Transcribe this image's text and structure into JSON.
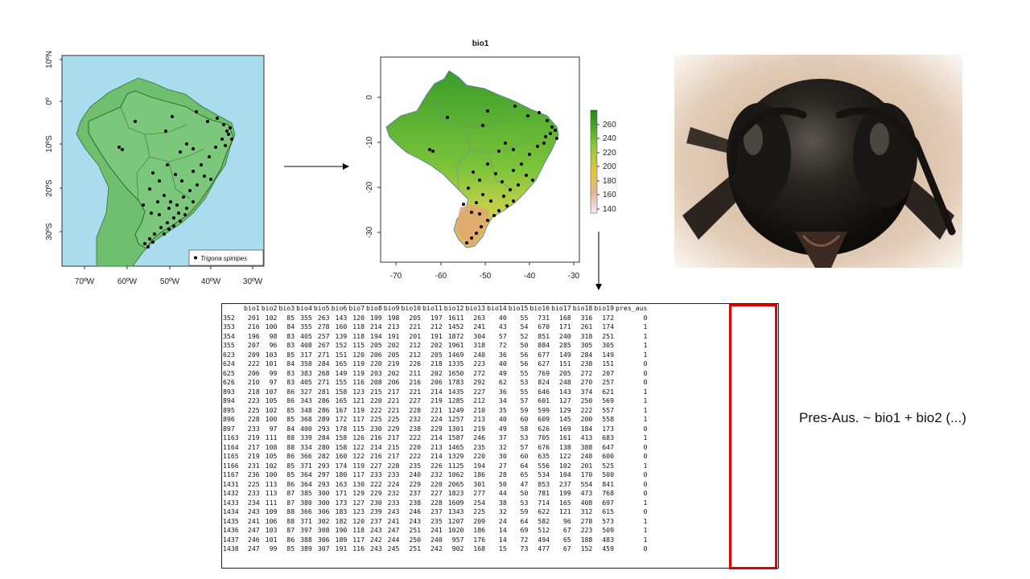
{
  "map1": {
    "y_ticks": [
      "10ºN",
      "0º",
      "10ºS",
      "20ºS",
      "30ºS"
    ],
    "x_ticks": [
      "70ºW",
      "60ºW",
      "50ºW",
      "40ºW",
      "30ºW"
    ],
    "legend_label": "Trigona spinipes"
  },
  "map2": {
    "title": "bio1",
    "y_ticks": [
      "0",
      "-10",
      "-20",
      "-30"
    ],
    "x_ticks": [
      "-70",
      "-60",
      "-50",
      "-40",
      "-30"
    ],
    "colorbar_ticks": [
      "260",
      "240",
      "220",
      "200",
      "180",
      "160",
      "140"
    ]
  },
  "colors": {
    "ocean": "#a9dcec",
    "land": "#7bc77b",
    "pres_box": "#e00000"
  },
  "table": {
    "headers": [
      "bio1",
      "bio2",
      "bio3",
      "bio4",
      "bio5",
      "bio6",
      "bio7",
      "bio8",
      "bio9",
      "bio10",
      "bio11",
      "bio12",
      "bio13",
      "bio14",
      "bio15",
      "bio16",
      "bio17",
      "bio18",
      "bio19",
      "pres_aus"
    ],
    "rows": [
      [
        "352",
        "201",
        "102",
        "85",
        "355",
        "263",
        "143",
        "120",
        "199",
        "198",
        "205",
        "197",
        "1611",
        "263",
        "40",
        "55",
        "731",
        "168",
        "316",
        "172",
        "0"
      ],
      [
        "353",
        "216",
        "100",
        "84",
        "355",
        "278",
        "160",
        "118",
        "214",
        "213",
        "221",
        "212",
        "1452",
        "241",
        "43",
        "54",
        "670",
        "171",
        "261",
        "174",
        "1"
      ],
      [
        "354",
        "196",
        "98",
        "83",
        "405",
        "257",
        "139",
        "118",
        "194",
        "191",
        "201",
        "191",
        "1872",
        "304",
        "57",
        "52",
        "851",
        "240",
        "318",
        "251",
        "1"
      ],
      [
        "355",
        "207",
        "96",
        "83",
        "408",
        "267",
        "152",
        "115",
        "205",
        "202",
        "212",
        "202",
        "1961",
        "318",
        "72",
        "50",
        "884",
        "285",
        "305",
        "305",
        "1"
      ],
      [
        "623",
        "209",
        "103",
        "85",
        "317",
        "271",
        "151",
        "120",
        "206",
        "205",
        "212",
        "205",
        "1469",
        "240",
        "36",
        "56",
        "677",
        "149",
        "284",
        "149",
        "1"
      ],
      [
        "624",
        "222",
        "101",
        "84",
        "358",
        "284",
        "165",
        "119",
        "220",
        "219",
        "226",
        "218",
        "1335",
        "223",
        "40",
        "56",
        "627",
        "151",
        "238",
        "151",
        "0"
      ],
      [
        "625",
        "206",
        "99",
        "83",
        "383",
        "268",
        "149",
        "119",
        "203",
        "202",
        "211",
        "202",
        "1650",
        "272",
        "49",
        "55",
        "769",
        "205",
        "272",
        "207",
        "0"
      ],
      [
        "626",
        "210",
        "97",
        "83",
        "405",
        "271",
        "155",
        "116",
        "208",
        "206",
        "216",
        "206",
        "1783",
        "292",
        "62",
        "53",
        "824",
        "248",
        "270",
        "257",
        "0"
      ],
      [
        "893",
        "218",
        "107",
        "86",
        "327",
        "281",
        "158",
        "123",
        "215",
        "217",
        "221",
        "214",
        "1435",
        "227",
        "36",
        "55",
        "646",
        "143",
        "374",
        "621",
        "1"
      ],
      [
        "894",
        "223",
        "105",
        "86",
        "343",
        "286",
        "165",
        "121",
        "220",
        "221",
        "227",
        "219",
        "1285",
        "212",
        "34",
        "57",
        "601",
        "127",
        "250",
        "569",
        "1"
      ],
      [
        "895",
        "225",
        "102",
        "85",
        "348",
        "286",
        "167",
        "119",
        "222",
        "221",
        "228",
        "221",
        "1249",
        "210",
        "35",
        "59",
        "599",
        "129",
        "222",
        "557",
        "1"
      ],
      [
        "896",
        "228",
        "100",
        "85",
        "368",
        "289",
        "172",
        "117",
        "225",
        "225",
        "232",
        "224",
        "1257",
        "213",
        "40",
        "60",
        "609",
        "145",
        "200",
        "558",
        "1"
      ],
      [
        "897",
        "233",
        "97",
        "84",
        "400",
        "293",
        "178",
        "115",
        "230",
        "229",
        "238",
        "229",
        "1301",
        "219",
        "49",
        "58",
        "626",
        "169",
        "184",
        "173",
        "0"
      ],
      [
        "1163",
        "219",
        "111",
        "88",
        "339",
        "284",
        "158",
        "126",
        "216",
        "217",
        "222",
        "214",
        "1587",
        "246",
        "37",
        "53",
        "705",
        "161",
        "413",
        "683",
        "1"
      ],
      [
        "1164",
        "217",
        "108",
        "88",
        "334",
        "280",
        "158",
        "122",
        "214",
        "215",
        "220",
        "213",
        "1465",
        "235",
        "32",
        "57",
        "676",
        "138",
        "388",
        "647",
        "0"
      ],
      [
        "1165",
        "219",
        "105",
        "86",
        "366",
        "282",
        "160",
        "122",
        "216",
        "217",
        "222",
        "214",
        "1329",
        "220",
        "30",
        "60",
        "635",
        "122",
        "248",
        "600",
        "0"
      ],
      [
        "1166",
        "231",
        "102",
        "85",
        "371",
        "293",
        "174",
        "119",
        "227",
        "228",
        "235",
        "226",
        "1125",
        "194",
        "27",
        "64",
        "556",
        "102",
        "201",
        "525",
        "1"
      ],
      [
        "1167",
        "236",
        "100",
        "85",
        "364",
        "297",
        "180",
        "117",
        "233",
        "233",
        "240",
        "232",
        "1062",
        "186",
        "28",
        "65",
        "534",
        "104",
        "170",
        "500",
        "0"
      ],
      [
        "1431",
        "225",
        "113",
        "86",
        "364",
        "293",
        "163",
        "130",
        "222",
        "224",
        "229",
        "220",
        "2065",
        "301",
        "50",
        "47",
        "853",
        "237",
        "554",
        "841",
        "0"
      ],
      [
        "1432",
        "233",
        "113",
        "87",
        "385",
        "300",
        "171",
        "129",
        "229",
        "232",
        "237",
        "227",
        "1823",
        "277",
        "44",
        "50",
        "781",
        "199",
        "473",
        "768",
        "0"
      ],
      [
        "1433",
        "234",
        "111",
        "87",
        "380",
        "300",
        "173",
        "127",
        "230",
        "233",
        "238",
        "228",
        "1609",
        "254",
        "38",
        "53",
        "714",
        "165",
        "408",
        "697",
        "1"
      ],
      [
        "1434",
        "243",
        "109",
        "88",
        "366",
        "306",
        "183",
        "123",
        "239",
        "243",
        "246",
        "237",
        "1343",
        "225",
        "32",
        "59",
        "622",
        "121",
        "312",
        "615",
        "0"
      ],
      [
        "1435",
        "241",
        "106",
        "88",
        "371",
        "302",
        "182",
        "120",
        "237",
        "241",
        "243",
        "235",
        "1207",
        "209",
        "24",
        "64",
        "582",
        "96",
        "278",
        "573",
        "1"
      ],
      [
        "1436",
        "247",
        "103",
        "87",
        "397",
        "308",
        "190",
        "118",
        "243",
        "247",
        "251",
        "241",
        "1020",
        "186",
        "14",
        "69",
        "512",
        "67",
        "223",
        "509",
        "1"
      ],
      [
        "1437",
        "246",
        "101",
        "86",
        "388",
        "306",
        "189",
        "117",
        "242",
        "244",
        "250",
        "240",
        "957",
        "176",
        "14",
        "72",
        "494",
        "65",
        "188",
        "483",
        "1"
      ],
      [
        "1438",
        "247",
        "99",
        "85",
        "389",
        "307",
        "191",
        "116",
        "243",
        "245",
        "251",
        "242",
        "902",
        "168",
        "15",
        "73",
        "477",
        "67",
        "152",
        "459",
        "0"
      ]
    ]
  },
  "formula": "Pres-Aus. ~ bio1 + bio2 (...)"
}
